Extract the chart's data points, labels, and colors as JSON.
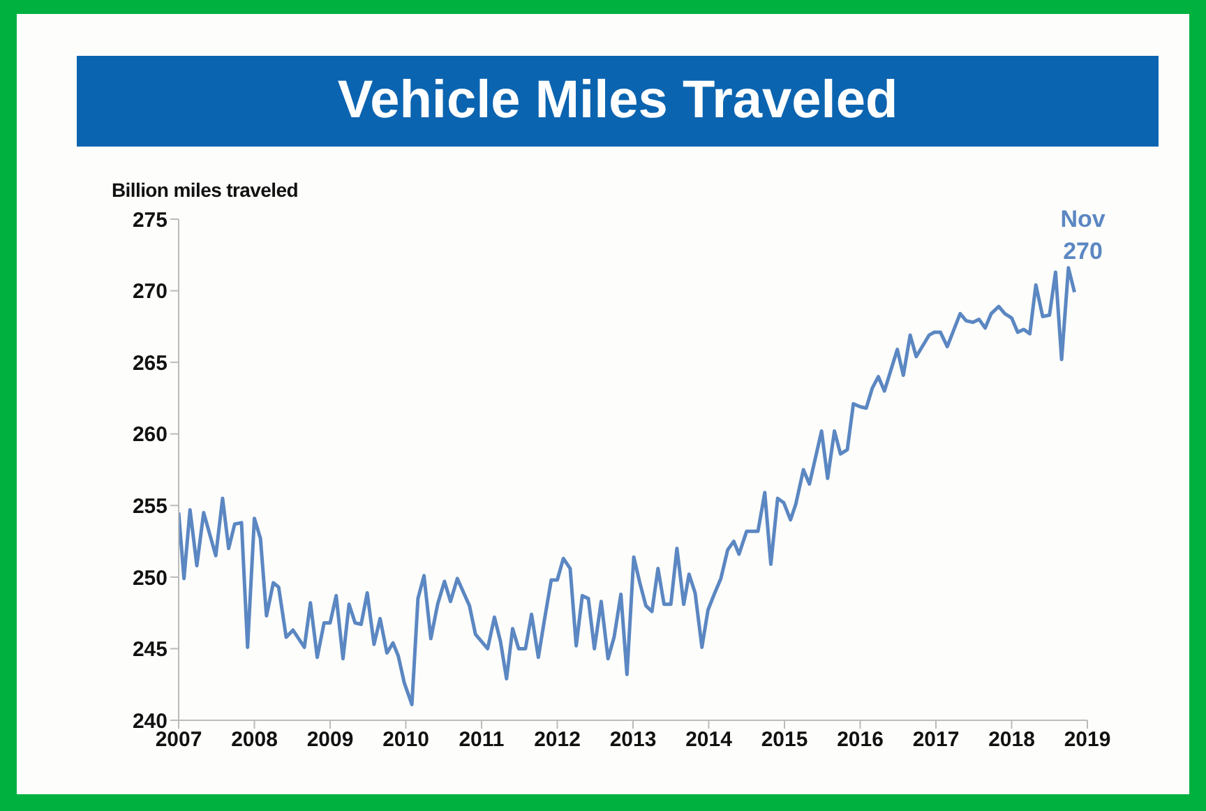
{
  "chart_data": {
    "type": "line",
    "title": "Vehicle Miles Traveled",
    "ylabel": "Billion miles traveled",
    "x": [
      2007.0,
      2007.07,
      2007.15,
      2007.24,
      2007.33,
      2007.49,
      2007.58,
      2007.66,
      2007.74,
      2007.83,
      2007.91,
      2008.0,
      2008.08,
      2008.16,
      2008.25,
      2008.32,
      2008.42,
      2008.51,
      2008.66,
      2008.74,
      2008.83,
      2008.92,
      2009.0,
      2009.08,
      2009.17,
      2009.25,
      2009.33,
      2009.41,
      2009.49,
      2009.58,
      2009.66,
      2009.75,
      2009.83,
      2009.9,
      2009.98,
      2010.08,
      2010.16,
      2010.24,
      2010.33,
      2010.42,
      2010.51,
      2010.59,
      2010.68,
      2010.84,
      2010.92,
      2011.0,
      2011.08,
      2011.17,
      2011.25,
      2011.33,
      2011.41,
      2011.49,
      2011.58,
      2011.66,
      2011.75,
      2011.83,
      2011.92,
      2012.0,
      2012.08,
      2012.17,
      2012.25,
      2012.33,
      2012.41,
      2012.49,
      2012.58,
      2012.67,
      2012.75,
      2012.84,
      2012.92,
      2013.01,
      2013.09,
      2013.17,
      2013.25,
      2013.33,
      2013.41,
      2013.5,
      2013.58,
      2013.67,
      2013.74,
      2013.82,
      2013.91,
      2013.99,
      2014.08,
      2014.16,
      2014.25,
      2014.33,
      2014.4,
      2014.5,
      2014.65,
      2014.74,
      2014.82,
      2014.91,
      2014.99,
      2015.08,
      2015.15,
      2015.25,
      2015.33,
      2015.49,
      2015.57,
      2015.66,
      2015.74,
      2015.83,
      2015.91,
      2016.0,
      2016.08,
      2016.16,
      2016.24,
      2016.32,
      2016.49,
      2016.57,
      2016.66,
      2016.74,
      2016.91,
      2016.98,
      2017.06,
      2017.15,
      2017.32,
      2017.4,
      2017.49,
      2017.57,
      2017.65,
      2017.73,
      2017.83,
      2017.91,
      2018.0,
      2018.08,
      2018.16,
      2018.24,
      2018.32,
      2018.41,
      2018.5,
      2018.58,
      2018.66,
      2018.75,
      2018.83
    ],
    "series": [
      {
        "color": "#5b87c2",
        "values": [
          254.5,
          249.9,
          254.7,
          250.8,
          254.5,
          251.5,
          255.5,
          252.0,
          253.7,
          253.8,
          245.1,
          254.1,
          252.7,
          247.3,
          249.6,
          249.3,
          245.8,
          246.3,
          245.1,
          248.2,
          244.4,
          246.8,
          246.8,
          248.7,
          244.3,
          248.1,
          246.8,
          246.7,
          248.9,
          245.3,
          247.1,
          244.7,
          245.4,
          244.5,
          242.6,
          241.1,
          248.5,
          250.1,
          245.7,
          248.1,
          249.7,
          248.3,
          249.9,
          248.0,
          246.0,
          245.5,
          245.0,
          247.2,
          245.5,
          242.9,
          246.4,
          245.0,
          245.0,
          247.4,
          244.4,
          247.0,
          249.8,
          249.8,
          251.3,
          250.6,
          245.2,
          248.7,
          248.5,
          245.0,
          248.3,
          244.3,
          245.8,
          248.8,
          243.2,
          251.4,
          249.6,
          248.0,
          247.6,
          250.6,
          248.1,
          248.1,
          252.0,
          248.1,
          250.2,
          248.9,
          245.1,
          247.7,
          248.9,
          249.9,
          251.9,
          252.5,
          251.6,
          253.2,
          253.2,
          255.9,
          250.9,
          255.5,
          255.2,
          254.0,
          255.1,
          257.5,
          256.5,
          260.2,
          256.9,
          260.2,
          258.6,
          258.9,
          262.1,
          261.9,
          261.8,
          263.2,
          264.0,
          263.0,
          265.9,
          264.1,
          266.9,
          265.4,
          266.9,
          267.1,
          267.1,
          266.1,
          268.4,
          267.9,
          267.8,
          268.0,
          267.4,
          268.4,
          268.9,
          268.4,
          268.1,
          267.1,
          267.3,
          267.0,
          270.4,
          268.2,
          268.3,
          271.3,
          265.2,
          271.6,
          269.9
        ]
      }
    ],
    "xlim": [
      2007,
      2019
    ],
    "xticks": [
      2007,
      2008,
      2009,
      2010,
      2011,
      2012,
      2013,
      2014,
      2015,
      2016,
      2017,
      2018,
      2019
    ],
    "ylim": [
      240,
      275
    ],
    "yticks": [
      240,
      245,
      250,
      255,
      260,
      265,
      270,
      275
    ],
    "grid": false,
    "legend": false,
    "marker": "none",
    "line_style": "solid",
    "annotations": [
      {
        "text": "Nov\n270",
        "x": 2018.83,
        "y": 269.9
      }
    ]
  }
}
